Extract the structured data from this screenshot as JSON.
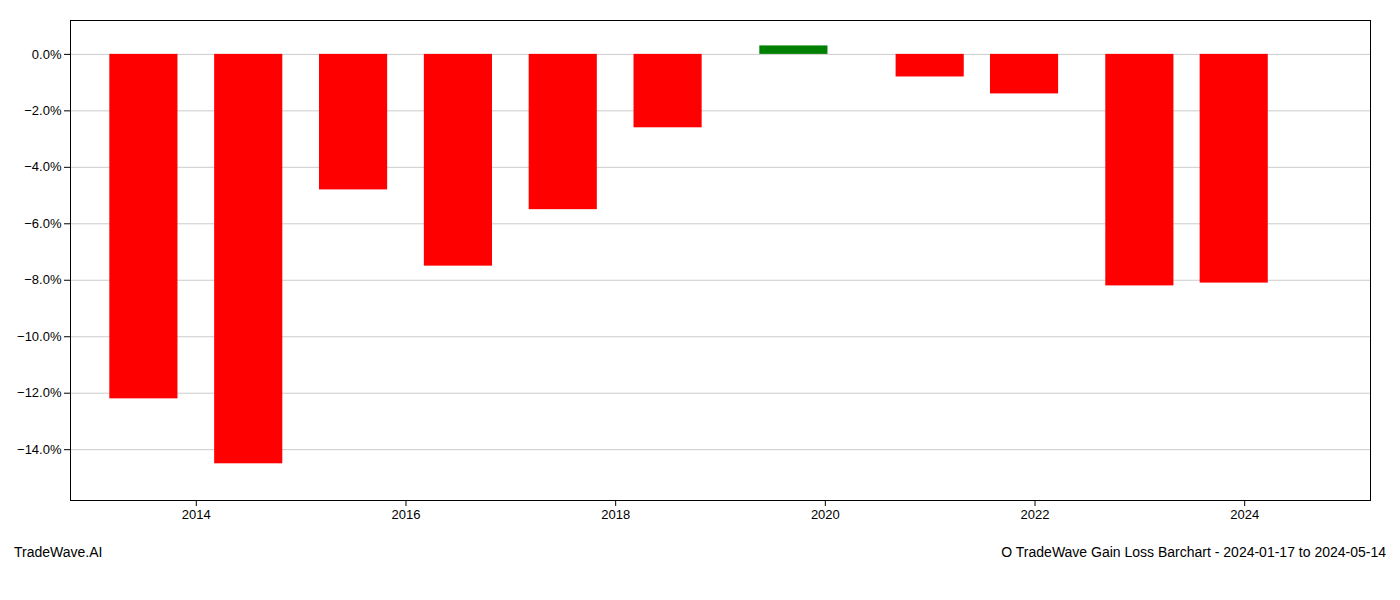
{
  "chart_data": {
    "type": "bar",
    "title": "O TradeWave Gain Loss Barchart - 2024-01-17 to 2024-05-14",
    "annotations": [
      "TradeWave.AI"
    ],
    "x": [
      2013.5,
      2014.5,
      2015.5,
      2016.5,
      2017.5,
      2018.5,
      2019.7,
      2021.0,
      2021.9,
      2023.0,
      2023.9
    ],
    "values": [
      -0.122,
      -0.145,
      -0.048,
      -0.075,
      -0.055,
      -0.026,
      0.003,
      -0.008,
      -0.014,
      -0.082,
      -0.081
    ],
    "colors": [
      "red",
      "red",
      "red",
      "red",
      "red",
      "red",
      "green",
      "red",
      "red",
      "red",
      "red"
    ],
    "xlim": [
      2012.8,
      2025.2
    ],
    "xticks": [
      2014,
      2016,
      2018,
      2020,
      2022,
      2024
    ],
    "ylim": [
      -0.158,
      0.012
    ],
    "yticks": [
      {
        "value": 0.0,
        "label": "0.0%"
      },
      {
        "value": -0.02,
        "label": "−2.0%"
      },
      {
        "value": -0.04,
        "label": "−4.0%"
      },
      {
        "value": -0.06,
        "label": "−6.0%"
      },
      {
        "value": -0.08,
        "label": "−8.0%"
      },
      {
        "value": -0.1,
        "label": "−10.0%"
      },
      {
        "value": -0.12,
        "label": "−12.0%"
      },
      {
        "value": -0.14,
        "label": "−14.0%"
      }
    ],
    "grid": true
  }
}
